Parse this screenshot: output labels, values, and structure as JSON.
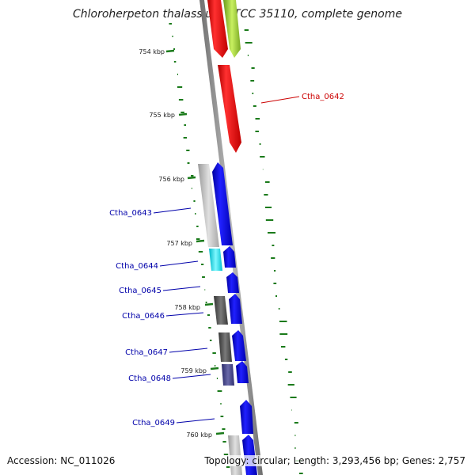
{
  "title": "Chloroherpeton thalassium ATCC 35110, complete genome",
  "footer": {
    "accession": "Accession: NC_011026",
    "stats": "Topology: circular; Length: 3,293,456 bp; Genes: 2,757"
  },
  "colors": {
    "highlight_gene": "#ff0000",
    "highlight_label": "#cc0000",
    "gene_forward": "#0000ff",
    "gene_label": "#0000aa",
    "cyan_gene": "#00e5ee",
    "yellow_green_gene": "#9acd32",
    "gray_gene": "#bbbbbb",
    "dark_gray_gene": "#555555",
    "slate_gene": "#4a4a8a",
    "ticks": "#1a7a1a",
    "backbone": "#888888"
  },
  "ticks": [
    {
      "label": "754 kbp"
    },
    {
      "label": "755 kbp"
    },
    {
      "label": "756 kbp"
    },
    {
      "label": "757 kbp"
    },
    {
      "label": "758 kbp"
    },
    {
      "label": "759 kbp"
    },
    {
      "label": "760 kbp"
    }
  ],
  "gene_labels": [
    {
      "text": "Ctha_0642",
      "highlighted": true
    },
    {
      "text": "Ctha_0643",
      "highlighted": false
    },
    {
      "text": "Ctha_0644",
      "highlighted": false
    },
    {
      "text": "Ctha_0645",
      "highlighted": false
    },
    {
      "text": "Ctha_0646",
      "highlighted": false
    },
    {
      "text": "Ctha_0647",
      "highlighted": false
    },
    {
      "text": "Ctha_0648",
      "highlighted": false
    },
    {
      "text": "Ctha_0649",
      "highlighted": false
    }
  ]
}
